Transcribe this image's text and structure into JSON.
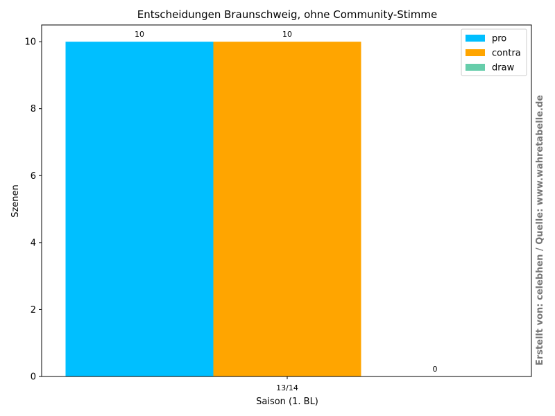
{
  "chart_data": {
    "type": "bar",
    "title": "Entscheidungen Braunschweig, ohne Community-Stimme",
    "xlabel": "Saison (1. BL)",
    "ylabel": "Szenen",
    "categories": [
      "13/14"
    ],
    "series": [
      {
        "name": "pro",
        "values": [
          10
        ],
        "color": "#00bfff"
      },
      {
        "name": "contra",
        "values": [
          10
        ],
        "color": "#ffa500"
      },
      {
        "name": "draw",
        "values": [
          0
        ],
        "color": "#66cdaa"
      }
    ],
    "ylim": [
      0,
      10.5
    ],
    "yticks": [
      0,
      2,
      4,
      6,
      8,
      10
    ],
    "grid": false,
    "legend_position": "top-right"
  },
  "watermark": "Erstellt von: celebhen / Quelle: www.wahretabelle.de"
}
